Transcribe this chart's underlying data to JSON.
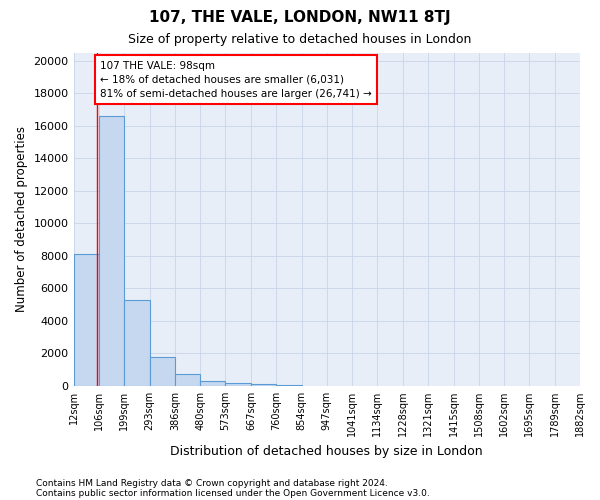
{
  "title": "107, THE VALE, LONDON, NW11 8TJ",
  "subtitle": "Size of property relative to detached houses in London",
  "xlabel": "Distribution of detached houses by size in London",
  "ylabel": "Number of detached properties",
  "footnote1": "Contains HM Land Registry data © Crown copyright and database right 2024.",
  "footnote2": "Contains public sector information licensed under the Open Government Licence v3.0.",
  "annotation_line1": "107 THE VALE: 98sqm",
  "annotation_line2": "← 18% of detached houses are smaller (6,031)",
  "annotation_line3": "81% of semi-detached houses are larger (26,741) →",
  "bar_color": "#c5d8f0",
  "bar_edge_color": "#5b9bd5",
  "redline_x": 98,
  "bin_edges": [
    12,
    106,
    199,
    293,
    386,
    480,
    573,
    667,
    760,
    854,
    947,
    1041,
    1134,
    1228,
    1321,
    1415,
    1508,
    1602,
    1695,
    1789,
    1882
  ],
  "bar_heights": [
    8100,
    16600,
    5300,
    1750,
    700,
    300,
    200,
    100,
    50,
    0,
    0,
    0,
    0,
    0,
    0,
    0,
    0,
    0,
    0,
    0
  ],
  "ylim": [
    0,
    20500
  ],
  "yticks": [
    0,
    2000,
    4000,
    6000,
    8000,
    10000,
    12000,
    14000,
    16000,
    18000,
    20000
  ],
  "tick_labels": [
    "12sqm",
    "106sqm",
    "199sqm",
    "293sqm",
    "386sqm",
    "480sqm",
    "573sqm",
    "667sqm",
    "760sqm",
    "854sqm",
    "947sqm",
    "1041sqm",
    "1134sqm",
    "1228sqm",
    "1321sqm",
    "1415sqm",
    "1508sqm",
    "1602sqm",
    "1695sqm",
    "1789sqm",
    "1882sqm"
  ],
  "grid_color": "#c8d4e8",
  "background_color": "#e8eef8"
}
